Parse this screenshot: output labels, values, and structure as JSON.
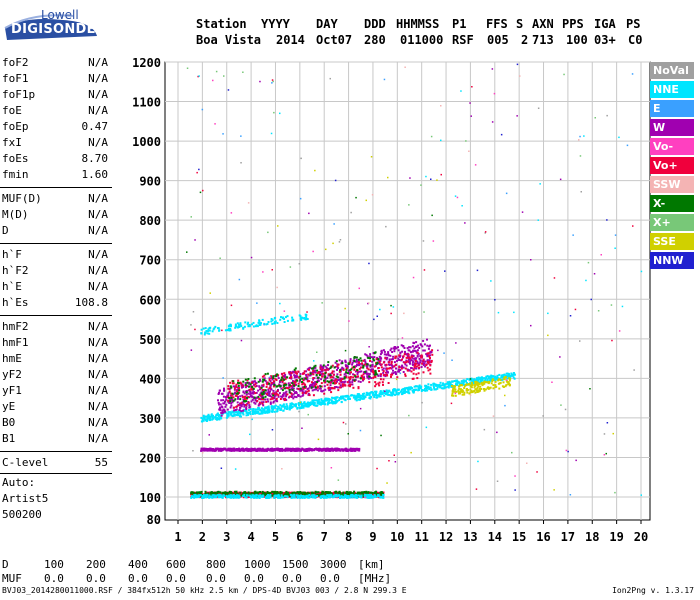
{
  "logo": {
    "line1": "Lowell",
    "line2": "DIGISONDE",
    "accent": "#2a4fa3"
  },
  "header": {
    "labels": [
      "Station",
      "YYYY",
      "DAY",
      "DDD",
      "HHMMSS",
      "P1",
      "FFS",
      "S",
      "AXN",
      "PPS",
      "IGA",
      "PS"
    ],
    "values": [
      "Boa Vista",
      "2014",
      "Oct07",
      "280",
      "011000",
      "RSF",
      "005",
      "2",
      "713",
      "100",
      "03+",
      "C0"
    ]
  },
  "params": [
    {
      "group": 1,
      "label": "foF2",
      "value": "N/A"
    },
    {
      "group": 1,
      "label": "foF1",
      "value": "N/A"
    },
    {
      "group": 1,
      "label": "foF1p",
      "value": "N/A"
    },
    {
      "group": 1,
      "label": "foE",
      "value": "N/A"
    },
    {
      "group": 1,
      "label": "foEp",
      "value": "0.47"
    },
    {
      "group": 1,
      "label": "fxI",
      "value": "N/A"
    },
    {
      "group": 1,
      "label": "foEs",
      "value": "8.70"
    },
    {
      "group": 1,
      "label": "fmin",
      "value": "1.60"
    },
    {
      "group": 2,
      "label": "MUF(D)",
      "value": "N/A"
    },
    {
      "group": 2,
      "label": "M(D)",
      "value": "N/A"
    },
    {
      "group": 2,
      "label": "D",
      "value": "N/A"
    },
    {
      "group": 3,
      "label": "h`F",
      "value": "N/A"
    },
    {
      "group": 3,
      "label": "h`F2",
      "value": "N/A"
    },
    {
      "group": 3,
      "label": "h`E",
      "value": "N/A"
    },
    {
      "group": 3,
      "label": "h`Es",
      "value": "108.8"
    },
    {
      "group": 4,
      "label": "hmF2",
      "value": "N/A"
    },
    {
      "group": 4,
      "label": "hmF1",
      "value": "N/A"
    },
    {
      "group": 4,
      "label": "hmE",
      "value": "N/A"
    },
    {
      "group": 4,
      "label": "yF2",
      "value": "N/A"
    },
    {
      "group": 4,
      "label": "yF1",
      "value": "N/A"
    },
    {
      "group": 4,
      "label": "yE",
      "value": "N/A"
    },
    {
      "group": 4,
      "label": "B0",
      "value": "N/A"
    },
    {
      "group": 4,
      "label": "B1",
      "value": "N/A"
    },
    {
      "group": 5,
      "label": "C-level",
      "value": "55"
    }
  ],
  "autoscale": {
    "line1": "Auto:",
    "line2": "Artist5",
    "line3": "500200"
  },
  "legend": [
    {
      "label": "NoVal",
      "color": "#a0a0a0"
    },
    {
      "label": "NNE",
      "color": "#00e5ff"
    },
    {
      "label": "E",
      "color": "#3aa0ff"
    },
    {
      "label": "W",
      "color": "#a000b0"
    },
    {
      "label": "Vo-",
      "color": "#ff40c0"
    },
    {
      "label": "Vo+",
      "color": "#f0003c"
    },
    {
      "label": "SSW",
      "color": "#f4b4b4"
    },
    {
      "label": "X-",
      "color": "#007800"
    },
    {
      "label": "X+",
      "color": "#78c878"
    },
    {
      "label": "SSE",
      "color": "#d0d000"
    },
    {
      "label": "NNW",
      "color": "#2020d0"
    }
  ],
  "muf_table": {
    "d_label": "D",
    "d_values": [
      "100",
      "200",
      "400",
      "600",
      "800",
      "1000",
      "1500",
      "3000"
    ],
    "d_unit": "[km]",
    "muf_label": "MUF",
    "muf_values": [
      "0.0",
      "0.0",
      "0.0",
      "0.0",
      "0.0",
      "0.0",
      "0.0",
      "0.0"
    ],
    "muf_unit": "[MHz]"
  },
  "footer": {
    "left": "BVJ03_2014280011000.RSF / 384fx512h 50 kHz 2.5 km / DPS-4D BVJ03 003 / 2.8 N 299.3 E",
    "right": "Ion2Png v. 1.3.17"
  },
  "chart_data": {
    "type": "scatter",
    "title": "",
    "xlabel": "",
    "ylabel": "",
    "xlim": [
      1,
      20
    ],
    "ylim": [
      80,
      1200
    ],
    "x_ticks": [
      1,
      2,
      3,
      4,
      5,
      6,
      7,
      8,
      9,
      10,
      11,
      12,
      13,
      14,
      15,
      16,
      17,
      18,
      19,
      20
    ],
    "y_ticks": [
      80,
      100,
      200,
      300,
      400,
      500,
      600,
      700,
      800,
      900,
      1000,
      1100,
      1200
    ],
    "grid": true,
    "legend_position": "right",
    "traces": [
      {
        "name": "F-trace",
        "color": "#00e5ff",
        "x_range": [
          1.9,
          14.8
        ],
        "y_start": 300,
        "y_end": 410,
        "density": 900,
        "spread": 8
      },
      {
        "name": "F-upper",
        "color": "#00e5ff",
        "x_range": [
          1.9,
          6.3
        ],
        "y_start": 520,
        "y_end": 560,
        "density": 120,
        "spread": 8
      },
      {
        "name": "F-echo-1",
        "color": "#a000b0",
        "x_range": [
          2.6,
          11.4
        ],
        "y_start": 340,
        "y_end": 470,
        "density": 900,
        "spread": 35
      },
      {
        "name": "F-echo-2",
        "color": "#f0003c",
        "x_range": [
          3.0,
          11.4
        ],
        "y_start": 360,
        "y_end": 440,
        "density": 380,
        "spread": 35
      },
      {
        "name": "F-echo-3",
        "color": "#007800",
        "x_range": [
          3.0,
          9.2
        ],
        "y_start": 365,
        "y_end": 440,
        "density": 160,
        "spread": 30
      },
      {
        "name": "F-echo-4",
        "color": "#d0d000",
        "x_range": [
          12.2,
          14.6
        ],
        "y_start": 370,
        "y_end": 395,
        "density": 160,
        "spread": 14
      },
      {
        "name": "Es-2",
        "color": "#a000b0",
        "x_range": [
          1.9,
          8.4
        ],
        "y_start": 222,
        "y_end": 222,
        "density": 600,
        "spread": 3
      },
      {
        "name": "Es-1",
        "color": "#f0003c",
        "x_range": [
          1.5,
          9.4
        ],
        "y_start": 108,
        "y_end": 108,
        "density": 1200,
        "spread": 6
      },
      {
        "name": "Es-1-b",
        "color": "#007800",
        "x_range": [
          1.5,
          9.4
        ],
        "y_start": 110,
        "y_end": 110,
        "density": 400,
        "spread": 6
      },
      {
        "name": "Es-1-c",
        "color": "#00e5ff",
        "x_range": [
          1.5,
          9.4
        ],
        "y_start": 104,
        "y_end": 104,
        "density": 400,
        "spread": 4
      },
      {
        "name": "noise",
        "color": "#a000b0",
        "x_range": [
          1,
          20
        ],
        "y_start": 80,
        "y_end": 1200,
        "density": 260,
        "spread": 0
      }
    ]
  }
}
